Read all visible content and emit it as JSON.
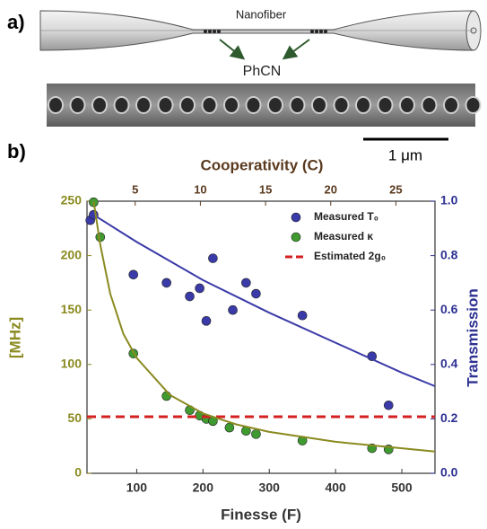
{
  "figure": {
    "panel_a_label": "a)",
    "panel_b_label": "b)",
    "fiber_label": "Nanofiber",
    "cavity_label": "PhCN",
    "scale_bar": "1 μm"
  },
  "chart_data": {
    "type": "scatter",
    "xlabel": "Finesse (F)",
    "x2label": "Cooperativity (C)",
    "ylabel": "[MHz]",
    "y2label": "Transmission",
    "xlim": [
      25,
      550
    ],
    "xticks": [
      100,
      200,
      300,
      400,
      500
    ],
    "x2lim": [
      1.3,
      28
    ],
    "x2ticks": [
      5,
      10,
      15,
      20,
      25
    ],
    "ylim": [
      0,
      250
    ],
    "yticks": [
      0,
      50,
      100,
      150,
      200,
      250
    ],
    "y2lim": [
      0,
      1
    ],
    "y2ticks": [
      {
        "value": 0,
        "label": "0.0"
      },
      0.2,
      0.4,
      0.6,
      0.8,
      {
        "value": 1,
        "label": "1.0"
      }
    ],
    "legend": "upper right",
    "series": [
      {
        "name": "Measured T₀",
        "color": "#3a3aa8",
        "axis": "y2",
        "style": "points",
        "x": [
          30,
          35,
          95,
          145,
          180,
          195,
          205,
          215,
          245,
          265,
          280,
          350,
          455,
          480
        ],
        "values": [
          0.93,
          0.95,
          0.73,
          0.7,
          0.65,
          0.68,
          0.56,
          0.79,
          0.6,
          0.7,
          0.66,
          0.58,
          0.43,
          0.25
        ]
      },
      {
        "name": "Measured κ",
        "color": "#3f9a30",
        "style": "points",
        "x": [
          35,
          45,
          95,
          145,
          180,
          195,
          205,
          215,
          240,
          265,
          280,
          350,
          455,
          480
        ],
        "values": [
          249,
          217,
          110,
          71,
          58,
          53,
          50,
          48,
          42,
          39,
          36,
          30,
          23,
          22
        ]
      },
      {
        "name": "Estimated 2g₀",
        "color": "#d42020",
        "style": "dashed",
        "x": [
          25,
          550
        ],
        "values": [
          52,
          52
        ]
      },
      {
        "color": "#3a3aa8",
        "axis": "y2",
        "style": "line",
        "x": [
          35,
          100,
          200,
          300,
          400,
          500,
          550
        ],
        "values": [
          0.95,
          0.85,
          0.71,
          0.59,
          0.48,
          0.37,
          0.32
        ]
      },
      {
        "color": "#8a8a20",
        "style": "line",
        "x": [
          35,
          45,
          60,
          80,
          100,
          150,
          200,
          250,
          300,
          400,
          500,
          550
        ],
        "values": [
          250,
          210,
          165,
          128,
          106,
          72,
          55,
          45,
          38,
          29,
          23,
          20
        ]
      }
    ]
  }
}
